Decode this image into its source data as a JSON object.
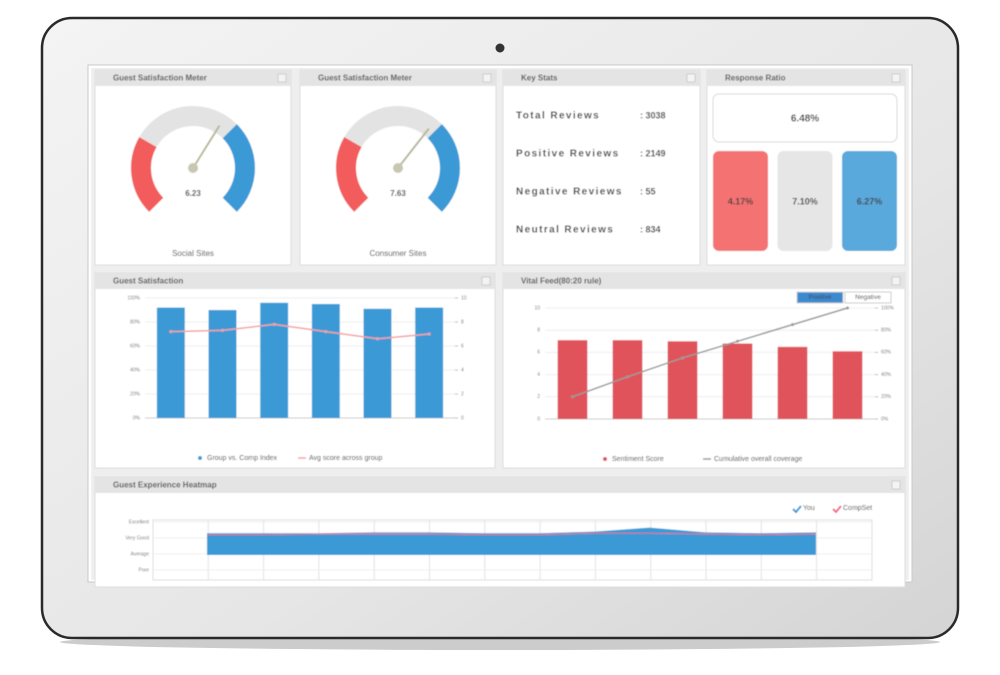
{
  "gauges": [
    {
      "title": "Guest Satisfaction Meter",
      "value": "6.23",
      "caption": "Social Sites"
    },
    {
      "title": "Guest Satisfaction Meter",
      "value": "7.63",
      "caption": "Consumer Sites"
    }
  ],
  "key_stats": {
    "title": "Key Stats",
    "rows": [
      {
        "label": "Total Reviews",
        "value": ": 3038",
        "color": "#8a8a8a"
      },
      {
        "label": "Positive Reviews",
        "value": ": 2149",
        "color": "#4a9fd8"
      },
      {
        "label": "Negative Reviews",
        "value": ": 55",
        "color": "#f05a5a"
      },
      {
        "label": "Neutral Reviews",
        "value": ": 834",
        "color": "#c4c4c4"
      }
    ]
  },
  "response_ratio": {
    "title": "Response Ratio",
    "overall": "6.48%",
    "boxes": [
      {
        "label": "4.17%",
        "color": "#f47272"
      },
      {
        "label": "7.10%",
        "color": "#e6e6e6"
      },
      {
        "label": "6.27%",
        "color": "#5aa9dc"
      }
    ]
  },
  "guest_satisfaction": {
    "title": "Guest Satisfaction",
    "ylim": [
      0,
      100
    ],
    "yticks": [
      {
        "value": 0,
        "label": "0%"
      },
      {
        "value": 20,
        "label": "20%"
      },
      {
        "value": 40,
        "label": "40%"
      },
      {
        "value": 60,
        "label": "60%"
      },
      {
        "value": 80,
        "label": "80%"
      },
      {
        "value": 100,
        "label": "100%"
      }
    ],
    "y2lim": [
      0,
      10
    ],
    "y2ticks": [
      0,
      2,
      4,
      6,
      8,
      10
    ],
    "series": [
      {
        "name": "Group vs. Comp Index",
        "type": "bar",
        "color": "#3a9ad6",
        "values": [
          92,
          90,
          96,
          95,
          91,
          92
        ]
      },
      {
        "name": "Avg score across group",
        "type": "line",
        "axis": "y2",
        "color": "#f4a0a0",
        "values": [
          7.2,
          7.3,
          7.8,
          7.2,
          6.6,
          7.0
        ]
      }
    ]
  },
  "vital_feed": {
    "title": "Vital Feed(80:20 rule)",
    "toggle": [
      "Positive",
      "Negative"
    ],
    "ylim": [
      0,
      10
    ],
    "yticks": [
      0,
      2,
      4,
      6,
      8,
      10
    ],
    "y2lim": [
      0,
      100
    ],
    "y2ticks": [
      {
        "value": 0,
        "label": "0%"
      },
      {
        "value": 20,
        "label": "20%"
      },
      {
        "value": 40,
        "label": "40%"
      },
      {
        "value": 60,
        "label": "60%"
      },
      {
        "value": 80,
        "label": "80%"
      },
      {
        "value": 100,
        "label": "100%"
      }
    ],
    "series": [
      {
        "name": "Sentiment Score",
        "type": "bar",
        "color": "#e0535a",
        "values": [
          7.1,
          7.1,
          7.0,
          6.8,
          6.5,
          6.1
        ]
      },
      {
        "name": "Cumulative overall coverage",
        "type": "line",
        "axis": "y2",
        "color": "#9a9a9a",
        "values": [
          20,
          38,
          55,
          70,
          85,
          100
        ]
      }
    ]
  },
  "heatmap": {
    "title": "Guest Experience Heatmap",
    "ylim": [
      0.5,
      4.5
    ],
    "yticks": [
      {
        "value": 1,
        "label": "Poor"
      },
      {
        "value": 2,
        "label": "Average"
      },
      {
        "value": 3,
        "label": "Very Good"
      },
      {
        "value": 4,
        "label": "Excellent"
      }
    ],
    "series": [
      {
        "name": "You",
        "color": "#3a9ad6",
        "values": [
          3.3,
          3.3,
          3.3,
          3.35,
          3.35,
          3.3,
          3.3,
          3.4,
          3.65,
          3.35,
          3.3,
          3.35
        ]
      },
      {
        "name": "CompSet",
        "color": "#f06a8a",
        "values": [
          3.2,
          3.2,
          3.25,
          3.25,
          3.25,
          3.2,
          3.2,
          3.3,
          3.3,
          3.25,
          3.2,
          3.25
        ]
      }
    ]
  }
}
